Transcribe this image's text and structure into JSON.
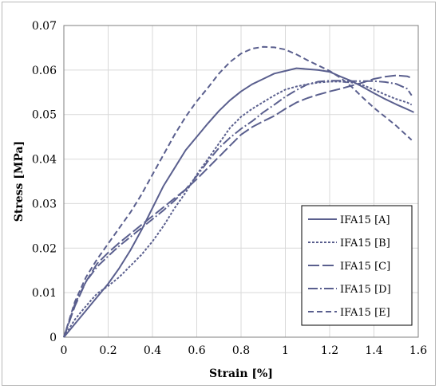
{
  "chart_data": {
    "type": "line",
    "xlabel": "Strain [%]",
    "ylabel": "Stress [MPa]",
    "xlim": [
      0,
      1.6
    ],
    "ylim": [
      0,
      0.07
    ],
    "xticks": [
      "0",
      "0.2",
      "0.4",
      "0.6",
      "0.8",
      "1",
      "1.2",
      "1.4",
      "1.6"
    ],
    "yticks": [
      "0",
      "0.01",
      "0.02",
      "0.03",
      "0.04",
      "0.05",
      "0.06",
      "0.07"
    ],
    "grid": true,
    "legend_position": "bottom-right",
    "line_color": "#5a5f8e",
    "series": [
      {
        "name": "IFA15 [A]",
        "dash": "solid",
        "x": [
          0,
          0.05,
          0.1,
          0.15,
          0.2,
          0.25,
          0.3,
          0.35,
          0.4,
          0.45,
          0.5,
          0.55,
          0.6,
          0.65,
          0.7,
          0.75,
          0.8,
          0.85,
          0.9,
          0.95,
          1.0,
          1.05,
          1.1,
          1.15,
          1.2,
          1.25,
          1.3,
          1.35,
          1.4,
          1.45,
          1.5,
          1.55,
          1.58
        ],
        "y": [
          0,
          0.003,
          0.006,
          0.009,
          0.012,
          0.0155,
          0.0195,
          0.024,
          0.029,
          0.034,
          0.038,
          0.042,
          0.045,
          0.048,
          0.0508,
          0.0532,
          0.0552,
          0.0568,
          0.058,
          0.0592,
          0.0598,
          0.0604,
          0.0602,
          0.06,
          0.0596,
          0.0585,
          0.0575,
          0.0562,
          0.0548,
          0.0535,
          0.0523,
          0.0512,
          0.0505
        ]
      },
      {
        "name": "IFA15 [B]",
        "dash": "short",
        "x": [
          0,
          0.05,
          0.1,
          0.15,
          0.2,
          0.25,
          0.3,
          0.35,
          0.4,
          0.45,
          0.5,
          0.55,
          0.6,
          0.65,
          0.7,
          0.75,
          0.8,
          0.85,
          0.9,
          0.95,
          1.0,
          1.05,
          1.1,
          1.15,
          1.2,
          1.25,
          1.3,
          1.35,
          1.4,
          1.45,
          1.5,
          1.55,
          1.57
        ],
        "y": [
          0,
          0.004,
          0.007,
          0.0098,
          0.0115,
          0.0135,
          0.016,
          0.0185,
          0.0215,
          0.025,
          0.029,
          0.0325,
          0.0365,
          0.04,
          0.0435,
          0.047,
          0.0495,
          0.0513,
          0.0528,
          0.0543,
          0.0556,
          0.0563,
          0.0568,
          0.0572,
          0.0574,
          0.0574,
          0.0572,
          0.0566,
          0.0556,
          0.0545,
          0.0535,
          0.0527,
          0.0522
        ]
      },
      {
        "name": "IFA15 [C]",
        "dash": "long",
        "x": [
          0,
          0.05,
          0.1,
          0.15,
          0.2,
          0.25,
          0.3,
          0.35,
          0.4,
          0.45,
          0.5,
          0.55,
          0.6,
          0.65,
          0.7,
          0.75,
          0.8,
          0.85,
          0.9,
          0.95,
          1.0,
          1.05,
          1.1,
          1.15,
          1.2,
          1.25,
          1.3,
          1.35,
          1.4,
          1.45,
          1.5,
          1.55,
          1.57
        ],
        "y": [
          0,
          0.007,
          0.0125,
          0.0165,
          0.019,
          0.0212,
          0.0232,
          0.0252,
          0.0272,
          0.0292,
          0.0312,
          0.0332,
          0.0355,
          0.038,
          0.0405,
          0.043,
          0.0455,
          0.0472,
          0.0485,
          0.0497,
          0.0513,
          0.0527,
          0.0537,
          0.0545,
          0.0552,
          0.0558,
          0.0565,
          0.0572,
          0.058,
          0.0585,
          0.0588,
          0.0586,
          0.0582
        ]
      },
      {
        "name": "IFA15 [D]",
        "dash": "dashdot",
        "x": [
          0,
          0.05,
          0.1,
          0.15,
          0.2,
          0.25,
          0.3,
          0.35,
          0.4,
          0.45,
          0.5,
          0.55,
          0.6,
          0.65,
          0.7,
          0.75,
          0.8,
          0.85,
          0.9,
          0.95,
          1.0,
          1.05,
          1.1,
          1.15,
          1.2,
          1.25,
          1.3,
          1.35,
          1.4,
          1.45,
          1.5,
          1.55,
          1.57
        ],
        "y": [
          0,
          0.0075,
          0.0125,
          0.0158,
          0.0182,
          0.0205,
          0.0225,
          0.0245,
          0.0265,
          0.0285,
          0.0307,
          0.0332,
          0.0362,
          0.0395,
          0.0425,
          0.0448,
          0.0468,
          0.0485,
          0.0505,
          0.0522,
          0.054,
          0.0555,
          0.0568,
          0.0574,
          0.0576,
          0.0576,
          0.0575,
          0.0575,
          0.0575,
          0.0573,
          0.0569,
          0.0558,
          0.0543
        ]
      },
      {
        "name": "IFA15 [E]",
        "dash": "medium",
        "x": [
          0,
          0.05,
          0.1,
          0.15,
          0.2,
          0.25,
          0.3,
          0.35,
          0.4,
          0.45,
          0.5,
          0.55,
          0.6,
          0.65,
          0.7,
          0.75,
          0.8,
          0.85,
          0.9,
          0.95,
          1.0,
          1.05,
          1.1,
          1.15,
          1.2,
          1.25,
          1.3,
          1.35,
          1.4,
          1.45,
          1.5,
          1.55,
          1.57
        ],
        "y": [
          0,
          0.008,
          0.0135,
          0.0175,
          0.021,
          0.0245,
          0.028,
          0.032,
          0.0365,
          0.041,
          0.0455,
          0.0495,
          0.053,
          0.056,
          0.0592,
          0.0618,
          0.0637,
          0.0648,
          0.0652,
          0.0651,
          0.0646,
          0.0635,
          0.0622,
          0.061,
          0.0598,
          0.0582,
          0.0562,
          0.0538,
          0.0515,
          0.0495,
          0.0475,
          0.0452,
          0.0443
        ]
      }
    ]
  }
}
